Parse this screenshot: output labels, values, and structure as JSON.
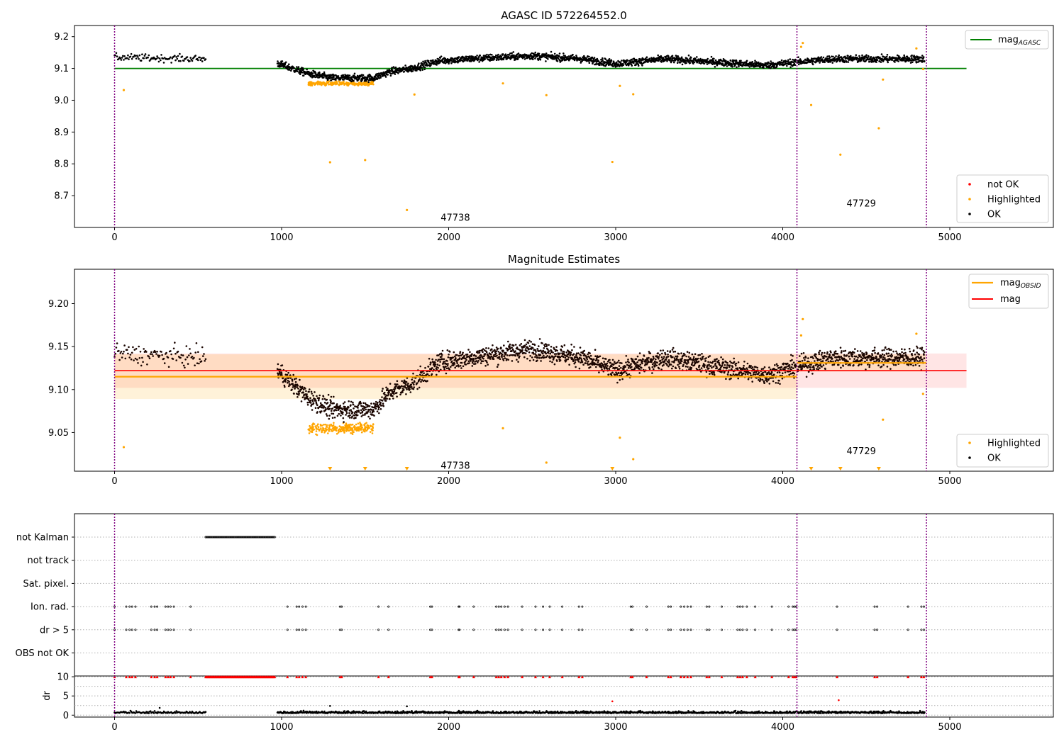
{
  "chart_data": [
    {
      "type": "scatter",
      "title": "AGASC ID 572264552.0",
      "xlim": [
        -240,
        5620
      ],
      "ylim": [
        8.6,
        9.235
      ],
      "xticks": [
        0,
        1000,
        2000,
        3000,
        4000,
        5000
      ],
      "yticks": [
        8.7,
        8.8,
        8.9,
        9.0,
        9.1,
        9.2
      ],
      "obsid_boundaries": [
        0,
        4085,
        4860
      ],
      "obsid_labels": [
        {
          "text": "47738",
          "x": 2040,
          "y": 8.63
        },
        {
          "text": "47729",
          "x": 4470,
          "y": 8.675
        }
      ],
      "reference_line": {
        "name": "mag_AGASC",
        "value": 9.1,
        "x": [
          0,
          5100
        ],
        "color": "#008000"
      },
      "series": [
        {
          "name": "not OK",
          "color": "#ff0000"
        },
        {
          "name": "Highlighted",
          "color": "#ffa500",
          "points": [
            [
              55,
              9.032
            ],
            [
              1290,
              8.805
            ],
            [
              1500,
              8.812
            ],
            [
              1750,
              8.655
            ],
            [
              1795,
              9.018
            ],
            [
              2325,
              9.053
            ],
            [
              2585,
              9.016
            ],
            [
              2980,
              8.806
            ],
            [
              3025,
              9.045
            ],
            [
              3105,
              9.019
            ],
            [
              4110,
              9.168
            ],
            [
              4120,
              9.18
            ],
            [
              4170,
              8.985
            ],
            [
              4345,
              8.829
            ],
            [
              4575,
              8.912
            ],
            [
              4600,
              9.065
            ],
            [
              4800,
              9.163
            ],
            [
              4840,
              9.098
            ]
          ]
        },
        {
          "name": "OK",
          "color": "#000000"
        }
      ],
      "trend": [
        [
          0,
          9.135
        ],
        [
          540,
          9.13
        ],
        [
          980,
          9.115
        ],
        [
          1150,
          9.085
        ],
        [
          1300,
          9.07
        ],
        [
          1550,
          9.07
        ],
        [
          1650,
          9.09
        ],
        [
          1780,
          9.1
        ],
        [
          1950,
          9.125
        ],
        [
          2300,
          9.135
        ],
        [
          2500,
          9.14
        ],
        [
          2800,
          9.13
        ],
        [
          3000,
          9.115
        ],
        [
          3300,
          9.13
        ],
        [
          3600,
          9.12
        ],
        [
          3900,
          9.11
        ],
        [
          4085,
          9.12
        ],
        [
          4300,
          9.13
        ],
        [
          4850,
          9.13
        ]
      ],
      "legend": {
        "lines": [
          "mag_AGASC"
        ],
        "points": [
          "not OK",
          "Highlighted",
          "OK"
        ]
      }
    },
    {
      "type": "scatter",
      "title": "Magnitude Estimates",
      "xlim": [
        -240,
        5620
      ],
      "ylim": [
        9.005,
        9.24
      ],
      "xticks": [
        0,
        1000,
        2000,
        3000,
        4000,
        5000
      ],
      "yticks": [
        9.05,
        9.1,
        9.15,
        9.2
      ],
      "obsid_labels": [
        {
          "text": "47738",
          "x": 2040,
          "y": 9.011
        },
        {
          "text": "47729",
          "x": 4470,
          "y": 9.028
        }
      ],
      "mag": {
        "name": "mag",
        "value": 9.122,
        "band": [
          9.102,
          9.142
        ],
        "x": [
          0,
          5100
        ],
        "color": "#ff0000"
      },
      "mag_obsid": [
        {
          "obsid": "47738",
          "value": 9.115,
          "band": [
            9.089,
            9.141
          ],
          "x": [
            0,
            4085
          ]
        },
        {
          "obsid": "47729",
          "value": 9.131,
          "band": [
            9.121,
            9.141
          ],
          "x": [
            4085,
            4860
          ]
        }
      ],
      "clipped_markers_x": [
        1290,
        1500,
        1750,
        2980,
        4170,
        4345,
        4575
      ],
      "highlighted_extra": [
        [
          55,
          9.033
        ],
        [
          2325,
          9.055
        ],
        [
          2585,
          9.015
        ],
        [
          3025,
          9.044
        ],
        [
          3105,
          9.019
        ],
        [
          4110,
          9.163
        ],
        [
          4120,
          9.182
        ],
        [
          4600,
          9.065
        ],
        [
          4800,
          9.165
        ],
        [
          4840,
          9.095
        ]
      ],
      "legend": {
        "lines": [
          "mag_OBSID",
          "mag"
        ],
        "points": [
          "Highlighted",
          "OK"
        ]
      }
    },
    {
      "type": "scatter",
      "title": "",
      "flags": [
        {
          "label": "not Kalman",
          "segments": [
            [
              545,
              960
            ]
          ]
        },
        {
          "label": "not track",
          "segments": []
        },
        {
          "label": "Sat. pixel.",
          "segments": []
        },
        {
          "label": "Ion. rad.",
          "x": [
            0,
            70,
            90,
            105,
            125,
            220,
            240,
            255,
            305,
            320,
            335,
            355,
            455,
            1035,
            1090,
            1105,
            1125,
            1145,
            1350,
            1360,
            1580,
            1640,
            1890,
            1900,
            2060,
            2065,
            2150,
            2285,
            2300,
            2315,
            2335,
            2355,
            2440,
            2520,
            2565,
            2605,
            2680,
            2780,
            2800,
            3090,
            3100,
            3185,
            3315,
            3330,
            3390,
            3410,
            3430,
            3450,
            3545,
            3560,
            3635,
            3730,
            3745,
            3760,
            3785,
            3835,
            3935,
            4035,
            4060,
            4070,
            4080,
            4325,
            4550,
            4565,
            4750,
            4830,
            4845
          ]
        },
        {
          "label": "dr > 5",
          "x": [
            0,
            70,
            90,
            105,
            125,
            220,
            240,
            255,
            305,
            320,
            335,
            355,
            455,
            1035,
            1090,
            1105,
            1125,
            1145,
            1350,
            1360,
            1580,
            1640,
            1890,
            1900,
            2060,
            2065,
            2150,
            2285,
            2300,
            2315,
            2335,
            2355,
            2440,
            2520,
            2565,
            2605,
            2680,
            2780,
            2800,
            3090,
            3100,
            3185,
            3315,
            3330,
            3390,
            3410,
            3430,
            3450,
            3545,
            3560,
            3635,
            3730,
            3745,
            3760,
            3785,
            3835,
            3935,
            4035,
            4060,
            4070,
            4080,
            4325,
            4550,
            4565,
            4750,
            4830,
            4845
          ]
        },
        {
          "label": "OBS not OK",
          "segments": []
        }
      ],
      "xlim": [
        -240,
        5620
      ],
      "xticks": [
        0,
        1000,
        2000,
        3000,
        4000,
        5000
      ],
      "dr": {
        "ylabel": "dr",
        "ylim": [
          -0.5,
          10.2
        ],
        "yticks": [
          0,
          5,
          10
        ],
        "clip_value": 10,
        "outliers": [
          [
            270,
            1.9
          ],
          [
            1290,
            2.4
          ],
          [
            1750,
            2.3
          ],
          [
            2980,
            3.6
          ],
          [
            4335,
            3.9
          ]
        ]
      }
    }
  ]
}
